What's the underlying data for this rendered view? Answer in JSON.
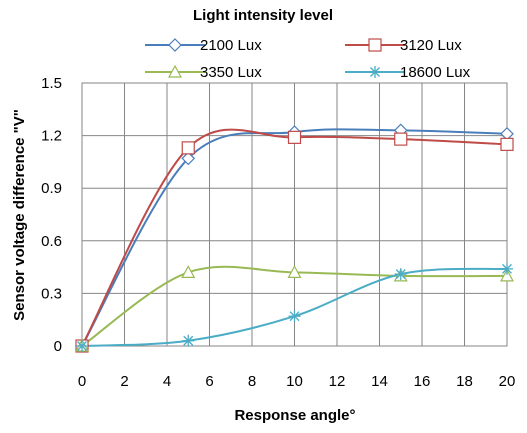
{
  "chart_data": {
    "type": "line",
    "legend_title": "Light intensity level",
    "legend_position": "top",
    "xlabel": "Response angle°",
    "ylabel": "Sensor voltage difference \"V\"",
    "x_ticks": [
      "0",
      "2",
      "4",
      "6",
      "8",
      "10",
      "12",
      "14",
      "16",
      "18",
      "20"
    ],
    "y_ticks": [
      "0",
      "0.3",
      "0.6",
      "0.9",
      "1.2",
      "1.5"
    ],
    "xlim": [
      0,
      20
    ],
    "ylim": [
      0,
      1.5
    ],
    "grid": true,
    "smooth": true,
    "series": [
      {
        "name": "2100 Lux",
        "color": "#4A7EBB",
        "marker": "diamond",
        "x": [
          0,
          5,
          10,
          15,
          20
        ],
        "y": [
          0,
          1.07,
          1.22,
          1.23,
          1.21
        ]
      },
      {
        "name": "3120 Lux",
        "color": "#BE4B48",
        "marker": "square",
        "x": [
          0,
          5,
          10,
          15,
          20
        ],
        "y": [
          0,
          1.13,
          1.19,
          1.18,
          1.15
        ]
      },
      {
        "name": "3350 Lux",
        "color": "#98B954",
        "marker": "triangle",
        "x": [
          0,
          5,
          10,
          15,
          20
        ],
        "y": [
          0,
          0.42,
          0.42,
          0.4,
          0.4
        ]
      },
      {
        "name": "18600 Lux",
        "color": "#4BACC6",
        "marker": "asterisk",
        "x": [
          0,
          5,
          10,
          15,
          20
        ],
        "y": [
          0,
          0.03,
          0.17,
          0.41,
          0.44
        ]
      }
    ]
  }
}
